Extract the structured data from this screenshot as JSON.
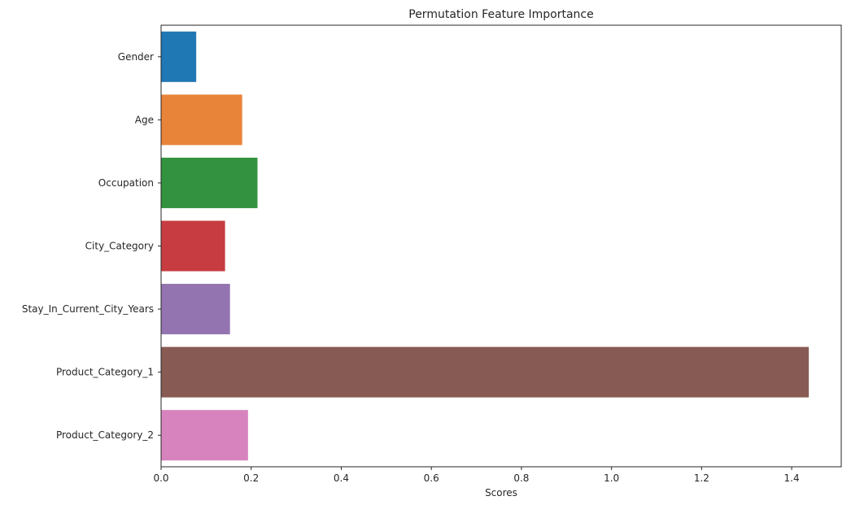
{
  "chart_data": {
    "type": "bar",
    "orientation": "horizontal",
    "title": "Permutation Feature Importance",
    "xlabel": "Scores",
    "ylabel": "",
    "categories": [
      "Gender",
      "Age",
      "Occupation",
      "City_Category",
      "Stay_In_Current_City_Years",
      "Product_Category_1",
      "Product_Category_2"
    ],
    "values": [
      0.078,
      0.18,
      0.214,
      0.142,
      0.153,
      1.438,
      0.193
    ],
    "colors": [
      "#1f77b4",
      "#e8833a",
      "#32923f",
      "#c73c41",
      "#9474b0",
      "#875b53",
      "#d784be"
    ],
    "xlim": [
      0,
      1.51
    ],
    "xticks": [
      0.0,
      0.2,
      0.4,
      0.6,
      0.8,
      1.0,
      1.2,
      1.4
    ],
    "xtick_labels": [
      "0.0",
      "0.2",
      "0.4",
      "0.6",
      "0.8",
      "1.0",
      "1.2",
      "1.4"
    ],
    "grid": false,
    "legend": "none"
  }
}
